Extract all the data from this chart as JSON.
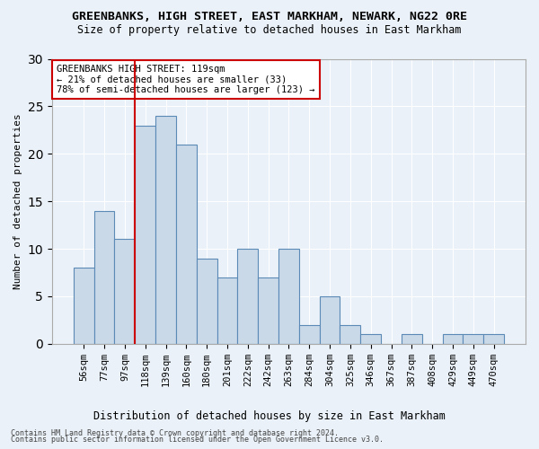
{
  "title": "GREENBANKS, HIGH STREET, EAST MARKHAM, NEWARK, NG22 0RE",
  "subtitle": "Size of property relative to detached houses in East Markham",
  "xlabel": "Distribution of detached houses by size in East Markham",
  "ylabel": "Number of detached properties",
  "bin_labels": [
    "56sqm",
    "77sqm",
    "97sqm",
    "118sqm",
    "139sqm",
    "160sqm",
    "180sqm",
    "201sqm",
    "222sqm",
    "242sqm",
    "263sqm",
    "284sqm",
    "304sqm",
    "325sqm",
    "346sqm",
    "367sqm",
    "387sqm",
    "408sqm",
    "429sqm",
    "449sqm",
    "470sqm"
  ],
  "bar_values": [
    8,
    14,
    11,
    23,
    24,
    21,
    9,
    7,
    10,
    7,
    10,
    2,
    5,
    2,
    1,
    0,
    1,
    0,
    1,
    1,
    1
  ],
  "bar_color": "#c9d9e8",
  "bar_edge_color": "#5a8ab5",
  "vline_idx": 3,
  "vline_color": "#cc0000",
  "annotation_text": "GREENBANKS HIGH STREET: 119sqm\n← 21% of detached houses are smaller (33)\n78% of semi-detached houses are larger (123) →",
  "annotation_box_color": "white",
  "annotation_box_edge": "#cc0000",
  "ylim": [
    0,
    30
  ],
  "yticks": [
    0,
    5,
    10,
    15,
    20,
    25,
    30
  ],
  "bg_color": "#eaf1f8",
  "footer1": "Contains HM Land Registry data © Crown copyright and database right 2024.",
  "footer2": "Contains public sector information licensed under the Open Government Licence v3.0."
}
